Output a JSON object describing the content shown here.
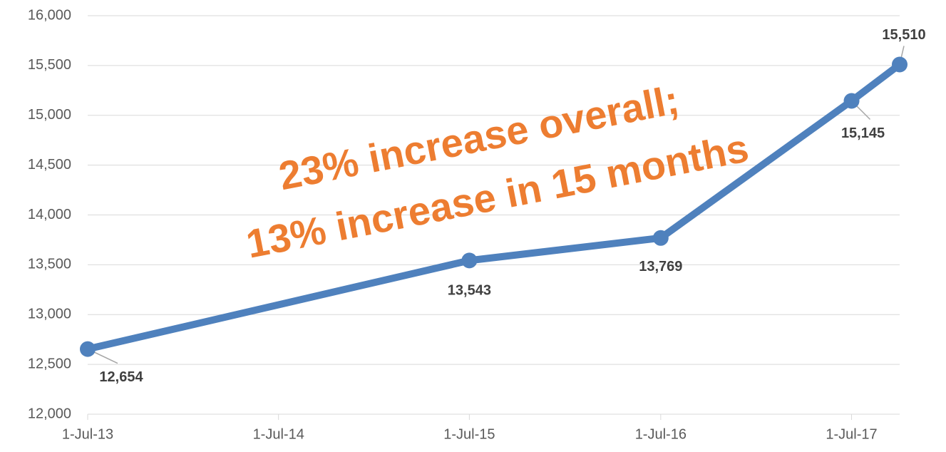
{
  "chart_data": {
    "type": "line",
    "x": [
      "2013-07-01",
      "2015-07-01",
      "2016-07-01",
      "2017-07-01",
      "2017-10-01"
    ],
    "series": [
      {
        "color": "#4f81bd",
        "values": [
          12654,
          13543,
          13769,
          15145,
          15510
        ],
        "value_labels": [
          "12,654",
          "13,543",
          "13,769",
          "15,145",
          "15,510"
        ]
      }
    ],
    "xlim": [
      "2013-07-01",
      "2017-10-01"
    ],
    "xticks": [
      {
        "value": "2013-07-01",
        "label": "1-Jul-13"
      },
      {
        "value": "2014-07-01",
        "label": "1-Jul-14"
      },
      {
        "value": "2015-07-01",
        "label": "1-Jul-15"
      },
      {
        "value": "2016-07-01",
        "label": "1-Jul-16"
      },
      {
        "value": "2017-07-01",
        "label": "1-Jul-17"
      }
    ],
    "ylim": [
      12000,
      16000
    ],
    "yticks": [
      {
        "value": 12000,
        "label": "12,000"
      },
      {
        "value": 12500,
        "label": "12,500"
      },
      {
        "value": 13000,
        "label": "13,000"
      },
      {
        "value": 13500,
        "label": "13,500"
      },
      {
        "value": 14000,
        "label": "14,000"
      },
      {
        "value": 14500,
        "label": "14,500"
      },
      {
        "value": 15000,
        "label": "15,000"
      },
      {
        "value": 15500,
        "label": "15,500"
      },
      {
        "value": 16000,
        "label": "16,000"
      }
    ],
    "grid": true,
    "annotations": [
      "23% increase overall;",
      "13% increase in 15 months"
    ]
  }
}
